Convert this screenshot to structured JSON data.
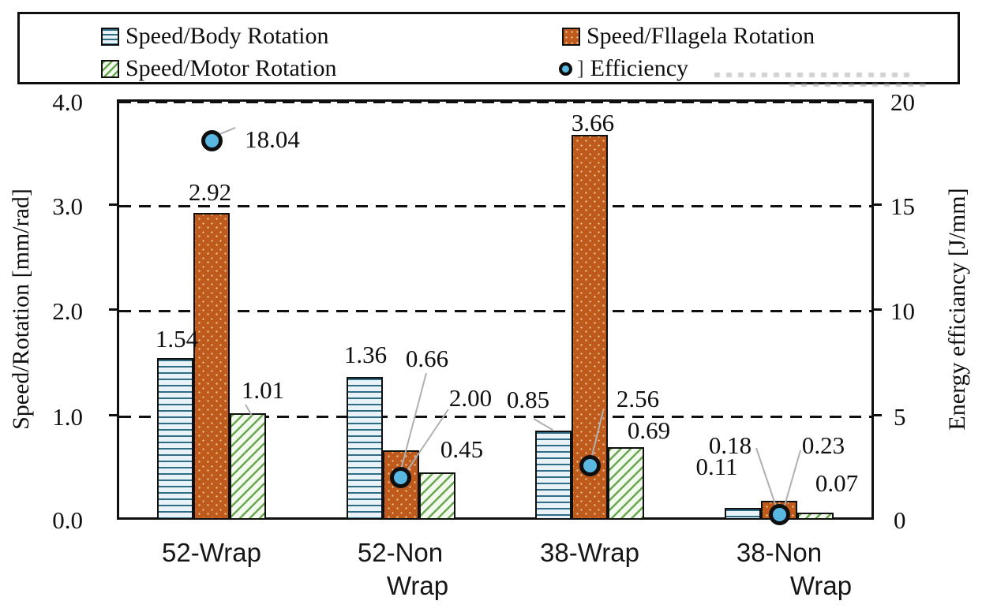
{
  "legend": {
    "items": [
      {
        "label": "Speed/Body Rotation",
        "swatch": "horizontal-lines"
      },
      {
        "label": "Speed/Fllagela Rotation",
        "swatch": "orange-dots"
      },
      {
        "label": "Speed/Motor Rotation",
        "swatch": "green-diagonal-hatch"
      },
      {
        "label": "Efficiency",
        "swatch": "blue-circle"
      }
    ],
    "efficiency_bracket": "]"
  },
  "chart_data": {
    "type": "bar",
    "title": "",
    "categories": [
      "52-Wrap",
      "52-Non Wrap",
      "38-Wrap",
      "38-Non Wrap"
    ],
    "category_lines": [
      [
        "52-Wrap"
      ],
      [
        "52-Non",
        "Wrap"
      ],
      [
        "38-Wrap"
      ],
      [
        "38-Non",
        "Wrap"
      ]
    ],
    "series": [
      {
        "name": "Speed/Body Rotation",
        "axis": "left",
        "type": "bar",
        "values": [
          1.54,
          1.36,
          0.85,
          0.11
        ],
        "labels": [
          "1.54",
          "1.36",
          "0.85",
          "0.11"
        ],
        "pattern": "horizontal-lines"
      },
      {
        "name": "Speed/Fllagela Rotation",
        "axis": "left",
        "type": "bar",
        "values": [
          2.92,
          0.66,
          3.66,
          0.18
        ],
        "labels": [
          "2.92",
          "0.66",
          "3.66",
          "0.18"
        ],
        "pattern": "orange-dots"
      },
      {
        "name": "Speed/Motor Rotation",
        "axis": "left",
        "type": "bar",
        "values": [
          1.01,
          0.45,
          0.69,
          0.07
        ],
        "labels": [
          "1.01",
          "0.45",
          "0.69",
          "0.07"
        ],
        "pattern": "green-diagonal-hatch"
      },
      {
        "name": "Efficiency",
        "axis": "right",
        "type": "scatter",
        "values": [
          18.04,
          2.0,
          2.56,
          0.23
        ],
        "labels": [
          "18.04",
          "2.00",
          "2.56",
          "0.23"
        ],
        "marker": "circle"
      }
    ],
    "left_axis": {
      "label": "Speed/Rotation [mm/rad]",
      "ticks": [
        "4.0",
        "3.0",
        "2.0",
        "1.0",
        "0.0"
      ],
      "range": [
        0,
        4
      ]
    },
    "right_axis": {
      "label": "Energy efficiancy [J/mm]",
      "ticks": [
        "20",
        "15",
        "10",
        "5",
        "0"
      ],
      "range": [
        0,
        20
      ]
    },
    "layout_hints": {
      "grid": "dashed horizontal lines at 1.0, 2.0, 3.0 and top",
      "legend_position": "top",
      "data_labels": "shown with gray leader lines"
    },
    "colors": {
      "flagella_bar": "#bf5a1d",
      "efficiency_marker": "#59b7e2",
      "body_bar_line": "#2f6d86",
      "body_bar_bg": "#e8f2f7",
      "motor_hatch": "#69a850",
      "motor_bg": "#f3faee",
      "leader_line": "#b0b0b0",
      "axis_and_border": "#0f0f0f"
    }
  }
}
